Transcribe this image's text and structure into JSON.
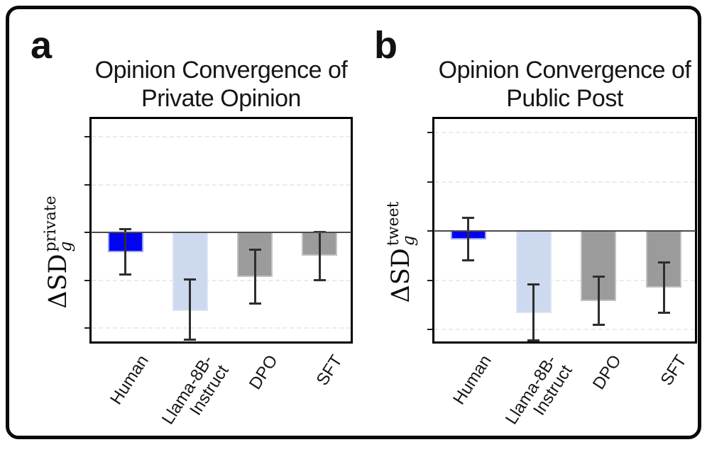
{
  "figure": {
    "panels": [
      {
        "label": "a",
        "title_line1": "Opinion Convergence of",
        "title_line2": "Private Opinion",
        "ylabel": {
          "base": "ΔSD",
          "sub": "g",
          "sup": "private"
        }
      },
      {
        "label": "b",
        "title_line1": "Opinion Convergence of",
        "title_line2": "Public Post",
        "ylabel": {
          "base": "ΔSD",
          "sub": "g",
          "sup": "tweet"
        }
      }
    ]
  },
  "chart_data": [
    {
      "type": "bar",
      "title": "Opinion Convergence of Private Opinion",
      "ylabel": "ΔSD_g^private",
      "xlabel": "",
      "categories": [
        "Human",
        "Llama-8B-\nInstruct",
        "DPO",
        "SFT"
      ],
      "values": [
        -0.41,
        -1.64,
        -0.93,
        -0.49
      ],
      "error_high": [
        0.09,
        -0.97,
        -0.34,
        0.03
      ],
      "error_low": [
        -0.9,
        -2.26,
        -1.51,
        -1.02
      ],
      "bar_colors": [
        "#0303F0",
        "#CCD9EE",
        "#9B9B9B",
        "#9B9B9B"
      ],
      "bar_edge_colors": [
        "#97A3F3",
        "#DCE4F4",
        "#C2C2C2",
        "#C2C2C2"
      ],
      "ylim": [
        -2.3,
        2.37
      ],
      "y_units_note": "axis unlabeled; values in gridline-interval units",
      "gridlines": [
        2,
        1,
        -1,
        -2
      ],
      "grid": "horizontal-dashed",
      "legend": "none"
    },
    {
      "type": "bar",
      "title": "Opinion Convergence of Public Post",
      "ylabel": "ΔSD_g^tweet",
      "xlabel": "",
      "categories": [
        "Human",
        "Llama-8B-\nInstruct",
        "DPO",
        "SFT"
      ],
      "values": [
        -0.17,
        -1.67,
        -1.42,
        -1.15
      ],
      "error_high": [
        0.29,
        -1.06,
        -0.91,
        -0.62
      ],
      "error_low": [
        -0.62,
        -2.24,
        -1.93,
        -1.68
      ],
      "bar_colors": [
        "#0303F0",
        "#CCD9EE",
        "#9B9B9B",
        "#9B9B9B"
      ],
      "bar_edge_colors": [
        "#97A3F3",
        "#DCE4F4",
        "#C2C2C2",
        "#C2C2C2"
      ],
      "ylim": [
        -2.24,
        2.27
      ],
      "y_units_note": "axis unlabeled; values in gridline-interval units",
      "gridlines": [
        2,
        1,
        -1,
        -2
      ],
      "grid": "horizontal-dashed",
      "legend": "none"
    }
  ]
}
